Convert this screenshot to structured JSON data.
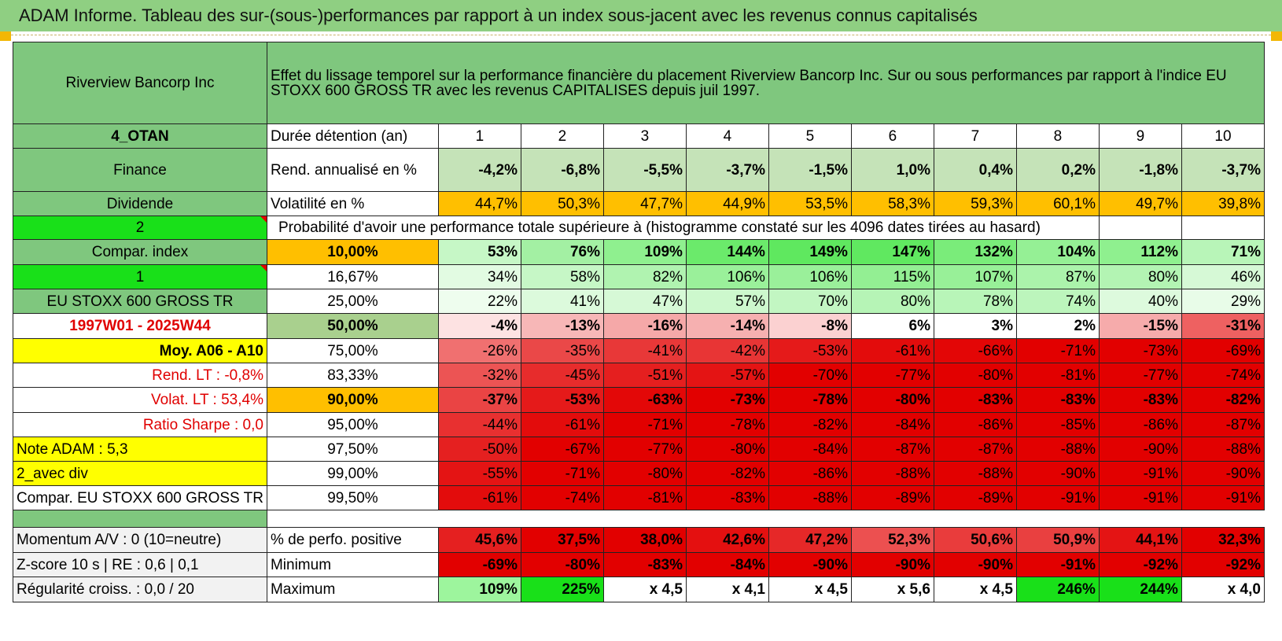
{
  "title": "ADAM Informe. Tableau des sur-(sous-)performances par rapport à un index sous-jacent avec les revenus connus capitalisés",
  "header": {
    "stock_name": "Riverview Bancorp Inc",
    "description": "Effet du lissage temporel sur la performance financière du placement Riverview Bancorp Inc. Sur ou sous performances par rapport à l'indice EU STOXX 600 GROSS TR avec les revenus CAPITALISES depuis juil 1997."
  },
  "left_panel": {
    "category": "4_OTAN",
    "sector": "Finance",
    "type": "Dividende",
    "selector_2": "2",
    "compar_label": "Compar. index",
    "selector_1": "1",
    "index_name": "EU STOXX 600 GROSS TR",
    "period": "1997W01 - 2025W44",
    "moy": "Moy. A06 - A10",
    "rend_lt": "Rend. LT :    -0,8%",
    "volat_lt": "Volat. LT :    53,4%",
    "sharpe": "Ratio Sharpe :    0,0",
    "note": "Note ADAM : 5,3",
    "avec_div": "2_avec div",
    "compar_full": "Compar. EU STOXX 600 GROSS TR"
  },
  "stats": {
    "duration_label": "Durée détention (an)",
    "years": [
      "1",
      "2",
      "3",
      "4",
      "5",
      "6",
      "7",
      "8",
      "9",
      "10"
    ],
    "rend_label": "Rend. annualisé en %",
    "rend_values": [
      "-4,2%",
      "-6,8%",
      "-5,5%",
      "-3,7%",
      "-1,5%",
      "1,0%",
      "0,4%",
      "0,2%",
      "-1,8%",
      "-3,7%"
    ],
    "vol_label": "Volatilité en %",
    "vol_values": [
      "44,7%",
      "50,3%",
      "47,7%",
      "44,9%",
      "53,5%",
      "58,3%",
      "59,3%",
      "60,1%",
      "49,7%",
      "39,8%"
    ],
    "prob_label": "Probabilité d'avoir une performance totale supérieure à (histogramme constaté sur les 4096 dates tirées au hasard)"
  },
  "distribution": [
    {
      "pct": "10,00%",
      "values": [
        "53%",
        "76%",
        "109%",
        "144%",
        "149%",
        "147%",
        "132%",
        "104%",
        "112%",
        "71%"
      ],
      "colors": [
        "#c6f7c6",
        "#a3f0a3",
        "#8ff08f",
        "#6bea6b",
        "#5fe85f",
        "#60e860",
        "#7aec7a",
        "#95f095",
        "#8ff08f",
        "#b8f5b8"
      ]
    },
    {
      "pct": "16,67%",
      "values": [
        "34%",
        "58%",
        "82%",
        "106%",
        "106%",
        "115%",
        "107%",
        "87%",
        "80%",
        "46%"
      ],
      "colors": [
        "#e2fbe2",
        "#c6f7c6",
        "#b0f3b0",
        "#9af09a",
        "#9af09a",
        "#93ef93",
        "#98f098",
        "#abf3ab",
        "#b3f4b3",
        "#d6f9d6"
      ]
    },
    {
      "pct": "25,00%",
      "values": [
        "22%",
        "41%",
        "47%",
        "57%",
        "70%",
        "80%",
        "78%",
        "74%",
        "40%",
        "29%"
      ],
      "colors": [
        "#eefdee",
        "#dcfadc",
        "#d6f9d6",
        "#cdf8cd",
        "#c2f6c2",
        "#b6f4b6",
        "#b8f5b8",
        "#bcf5bc",
        "#ddfadd",
        "#e8fce8"
      ]
    },
    {
      "pct": "50,00%",
      "values": [
        "-4%",
        "-13%",
        "-16%",
        "-14%",
        "-8%",
        "6%",
        "3%",
        "2%",
        "-15%",
        "-31%"
      ],
      "colors": [
        "#fde2e2",
        "#f7b7b7",
        "#f5a8a8",
        "#f6b0b0",
        "#fbd1d1",
        "#ffffff",
        "#ffffff",
        "#ffffff",
        "#f6abab",
        "#ee6161"
      ]
    },
    {
      "pct": "75,00%",
      "values": [
        "-26%",
        "-35%",
        "-41%",
        "-42%",
        "-53%",
        "-61%",
        "-66%",
        "-71%",
        "-73%",
        "-69%"
      ],
      "colors": [
        "#f07070",
        "#ea4848",
        "#e83838",
        "#e83535",
        "#e51a1a",
        "#e30c0c",
        "#e30606",
        "#e20000",
        "#e20000",
        "#e20000"
      ]
    },
    {
      "pct": "83,33%",
      "values": [
        "-32%",
        "-45%",
        "-51%",
        "-57%",
        "-70%",
        "-77%",
        "-80%",
        "-81%",
        "-77%",
        "-74%"
      ],
      "colors": [
        "#ec5454",
        "#e72c2c",
        "#e51f1f",
        "#e41414",
        "#e20000",
        "#e20000",
        "#e20000",
        "#e20000",
        "#e20000",
        "#e20000"
      ]
    },
    {
      "pct": "90,00%",
      "values": [
        "-37%",
        "-53%",
        "-63%",
        "-73%",
        "-78%",
        "-80%",
        "-83%",
        "-83%",
        "-83%",
        "-82%"
      ],
      "colors": [
        "#ea4444",
        "#e51a1a",
        "#e30808",
        "#e20000",
        "#e20000",
        "#e20000",
        "#e20000",
        "#e20000",
        "#e20000",
        "#e20000"
      ]
    },
    {
      "pct": "95,00%",
      "values": [
        "-44%",
        "-61%",
        "-71%",
        "-78%",
        "-82%",
        "-84%",
        "-86%",
        "-85%",
        "-86%",
        "-87%"
      ],
      "colors": [
        "#e83030",
        "#e30c0c",
        "#e20000",
        "#e20000",
        "#e20000",
        "#e20000",
        "#e20000",
        "#e20000",
        "#e20000",
        "#e20000"
      ]
    },
    {
      "pct": "97,50%",
      "values": [
        "-50%",
        "-67%",
        "-77%",
        "-80%",
        "-84%",
        "-87%",
        "-87%",
        "-88%",
        "-90%",
        "-88%"
      ],
      "colors": [
        "#e52020",
        "#e20000",
        "#e20000",
        "#e20000",
        "#e20000",
        "#e20000",
        "#e20000",
        "#e20000",
        "#e20000",
        "#e20000"
      ]
    },
    {
      "pct": "99,00%",
      "values": [
        "-55%",
        "-71%",
        "-80%",
        "-82%",
        "-86%",
        "-88%",
        "-88%",
        "-90%",
        "-91%",
        "-90%"
      ],
      "colors": [
        "#e41414",
        "#e20000",
        "#e20000",
        "#e20000",
        "#e20000",
        "#e20000",
        "#e20000",
        "#e20000",
        "#e20000",
        "#e20000"
      ]
    },
    {
      "pct": "99,50%",
      "values": [
        "-61%",
        "-74%",
        "-81%",
        "-83%",
        "-88%",
        "-89%",
        "-89%",
        "-91%",
        "-91%",
        "-91%"
      ],
      "colors": [
        "#e30c0c",
        "#e20000",
        "#e20000",
        "#e20000",
        "#e20000",
        "#e20000",
        "#e20000",
        "#e20000",
        "#e20000",
        "#e20000"
      ]
    }
  ],
  "bottom": {
    "momentum": "Momentum A/V : 0 (10=neutre)",
    "zscore": "Z-score 10 s | RE : 0,6 | 0,1",
    "regularite": "Régularité croiss. : 0,0 / 20",
    "pos_label": "% de perfo. positive",
    "pos_values": [
      "45,6%",
      "37,5%",
      "38,0%",
      "42,6%",
      "47,2%",
      "52,3%",
      "50,6%",
      "50,9%",
      "44,1%",
      "32,3%"
    ],
    "pos_colors": [
      "#e52020",
      "#e20000",
      "#e20000",
      "#e41010",
      "#e62828",
      "#ec5050",
      "#e93c3c",
      "#e94040",
      "#e41414",
      "#e20000"
    ],
    "min_label": "Minimum",
    "min_values": [
      "-69%",
      "-80%",
      "-83%",
      "-84%",
      "-90%",
      "-90%",
      "-90%",
      "-91%",
      "-92%",
      "-92%"
    ],
    "min_colors": [
      "#e20000",
      "#e20000",
      "#e20000",
      "#e20000",
      "#e20000",
      "#e20000",
      "#e20000",
      "#e20000",
      "#e20000",
      "#e20000"
    ],
    "max_label": "Maximum",
    "max_values": [
      "109%",
      "225%",
      "x 4,5",
      "x 4,1",
      "x 4,5",
      "x 5,6",
      "x 4,5",
      "246%",
      "244%",
      "x 4,0"
    ],
    "max_colors": [
      "#9df59d",
      "#19e019",
      "#ffffff",
      "#ffffff",
      "#ffffff",
      "#ffffff",
      "#ffffff",
      "#19e019",
      "#19e019",
      "#ffffff"
    ]
  },
  "colors": {
    "header_green": "#8fcf82",
    "mid_green": "#7fc77e",
    "bright_green": "#19e019",
    "yellow": "#ffff00",
    "orange": "#ffbf00",
    "red": "#e20000"
  }
}
